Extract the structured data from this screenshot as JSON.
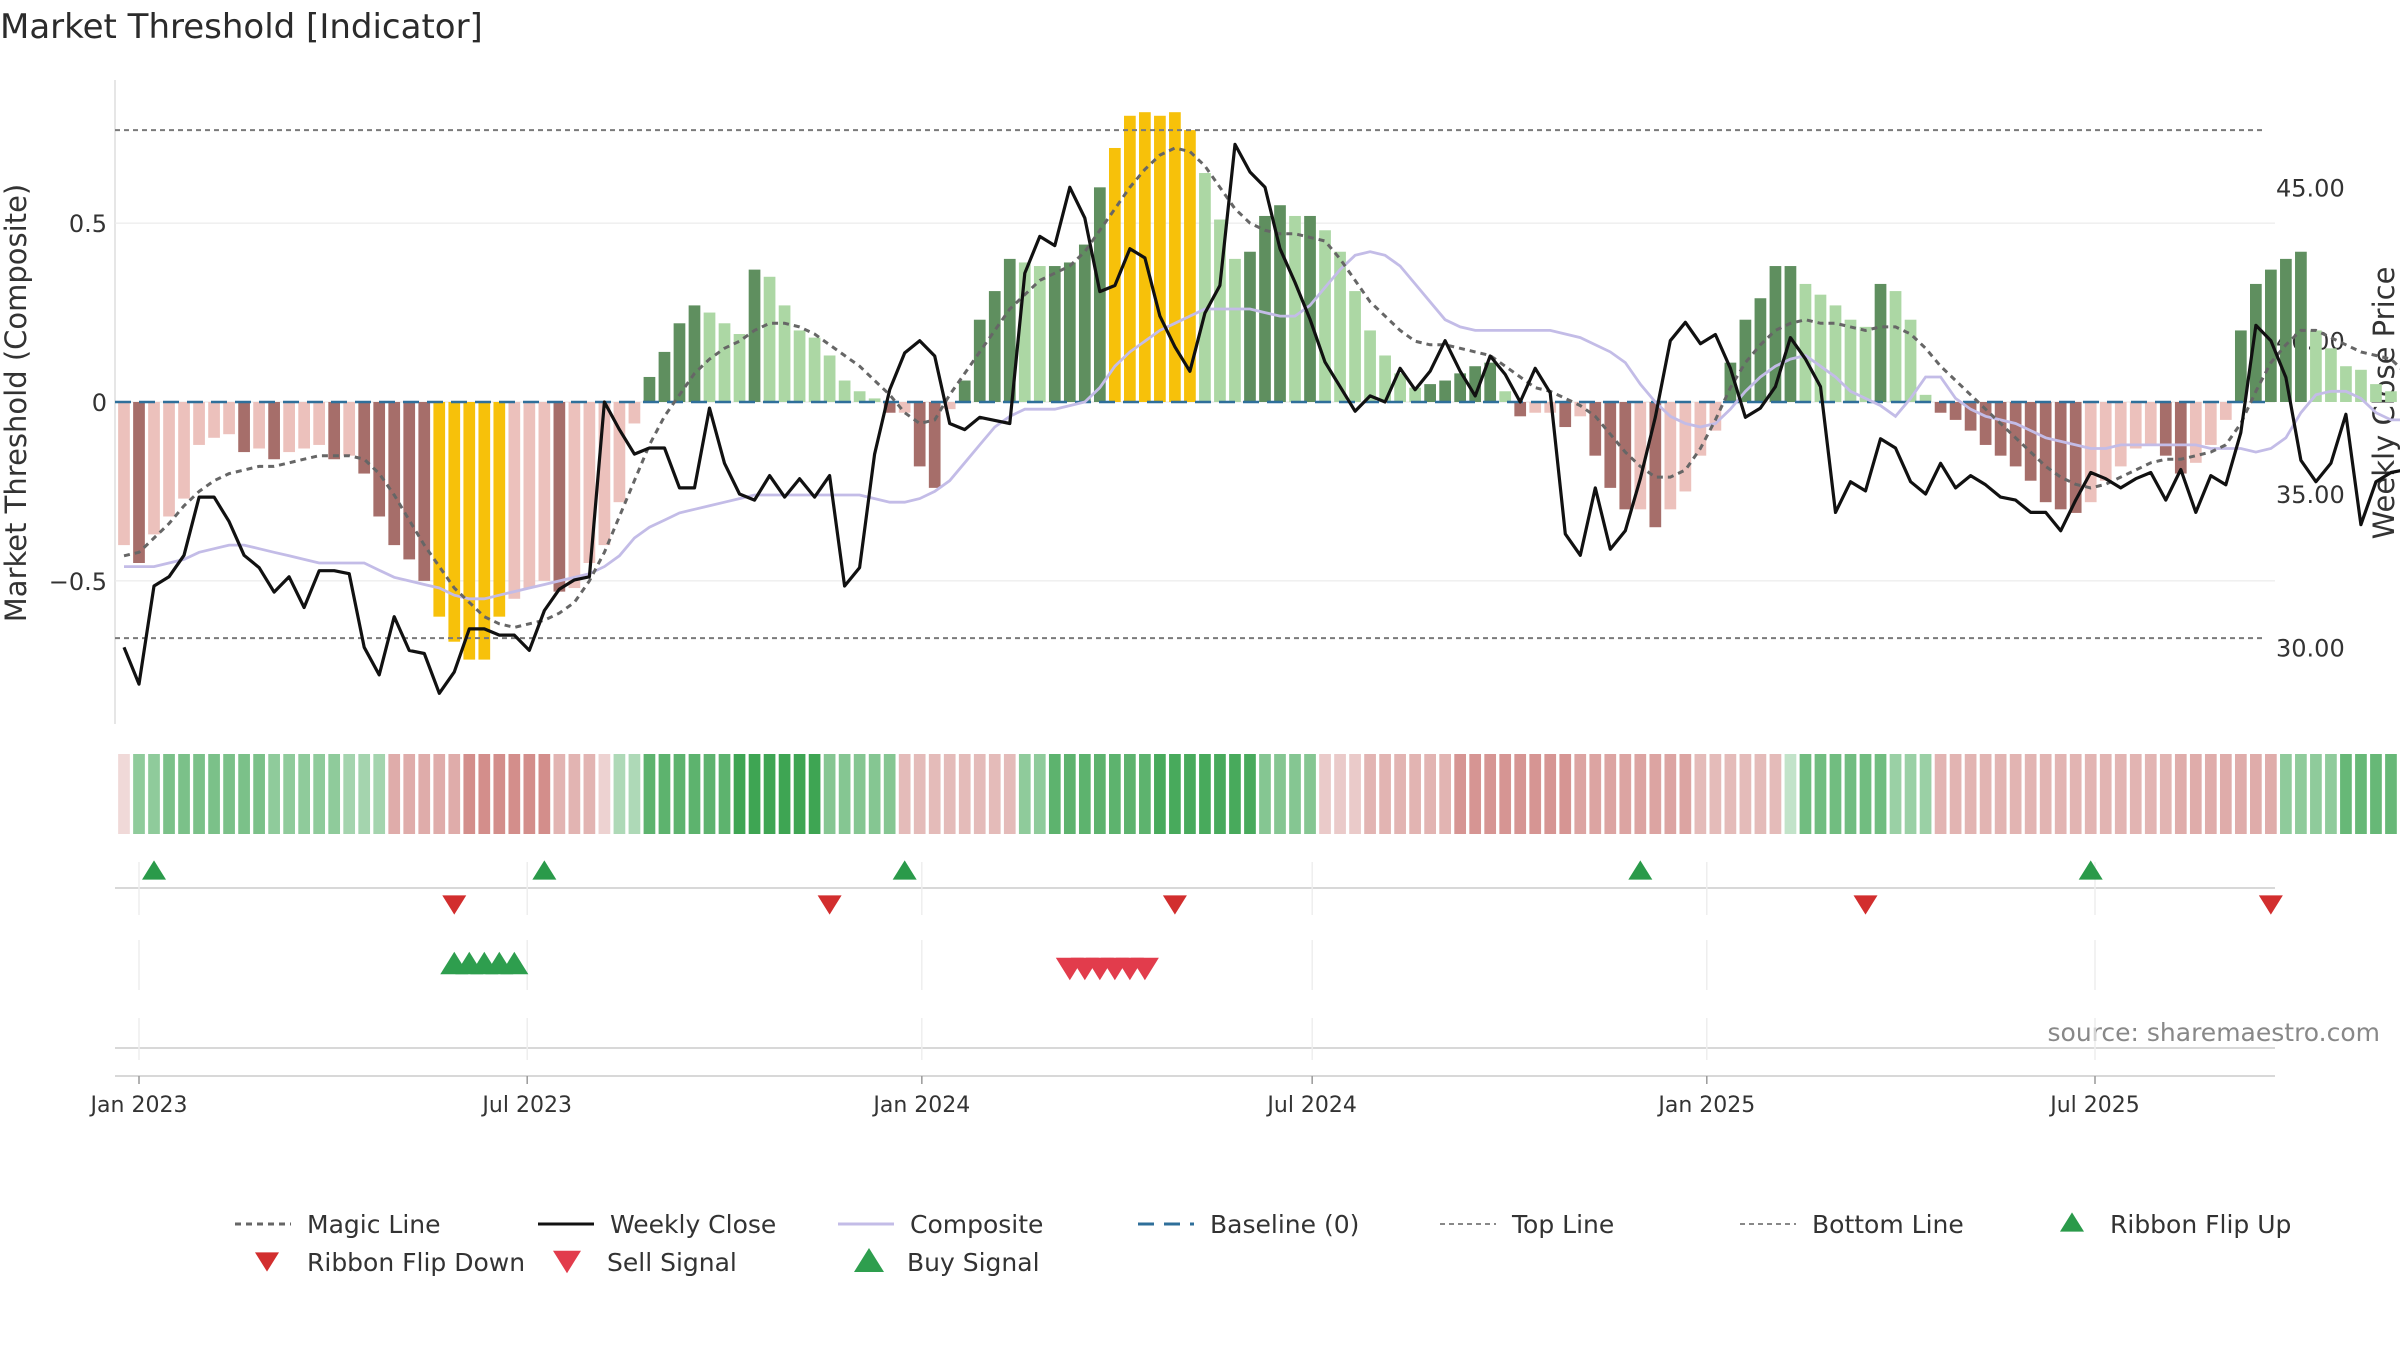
{
  "chart_data": {
    "type": "bar",
    "title": "Market Threshold [Indicator]",
    "ylabel_left": "Market Threshold (Composite)",
    "ylabel_right": "Weekly Close Price",
    "source": "source: sharemaestro.com",
    "ylim_left": [
      -0.9,
      0.9
    ],
    "ylim_right": [
      27.5,
      48.5
    ],
    "left_ticks": [
      {
        "v": 0.5,
        "label": "0.5"
      },
      {
        "v": 0,
        "label": "0"
      },
      {
        "v": -0.5,
        "label": "−0.5"
      }
    ],
    "right_ticks": [
      {
        "v": 45,
        "label": "45.00"
      },
      {
        "v": 40,
        "label": "40.00"
      },
      {
        "v": 35,
        "label": "35.00"
      },
      {
        "v": 30,
        "label": "30.00"
      }
    ],
    "top_line": 0.76,
    "bottom_line": -0.66,
    "baseline": 0,
    "x_ticks": [
      {
        "date": "2023-01-01",
        "label": "Jan 2023"
      },
      {
        "date": "2023-07-01",
        "label": "Jul 2023"
      },
      {
        "date": "2024-01-01",
        "label": "Jan 2024"
      },
      {
        "date": "2024-07-01",
        "label": "Jul 2024"
      },
      {
        "date": "2025-01-01",
        "label": "Jan 2025"
      },
      {
        "date": "2025-07-01",
        "label": "Jul 2025"
      }
    ],
    "first_week": "2022-12-25",
    "composite_bars": [
      -0.4,
      -0.45,
      -0.37,
      -0.32,
      -0.27,
      -0.12,
      -0.1,
      -0.09,
      -0.14,
      -0.13,
      -0.16,
      -0.14,
      -0.13,
      -0.12,
      -0.16,
      -0.15,
      -0.2,
      -0.32,
      -0.4,
      -0.44,
      -0.5,
      -0.6,
      -0.67,
      -0.72,
      -0.72,
      -0.6,
      -0.55,
      -0.52,
      -0.5,
      -0.53,
      -0.52,
      -0.45,
      -0.4,
      -0.28,
      -0.06,
      0.07,
      0.14,
      0.22,
      0.27,
      0.25,
      0.22,
      0.19,
      0.37,
      0.35,
      0.27,
      0.2,
      0.18,
      0.13,
      0.06,
      0.03,
      0.01,
      -0.03,
      -0.03,
      -0.18,
      -0.24,
      -0.02,
      0.06,
      0.23,
      0.31,
      0.4,
      0.39,
      0.38,
      0.38,
      0.39,
      0.44,
      0.6,
      0.71,
      0.8,
      0.81,
      0.8,
      0.81,
      0.76,
      0.64,
      0.51,
      0.4,
      0.42,
      0.52,
      0.55,
      0.52,
      0.52,
      0.48,
      0.42,
      0.31,
      0.2,
      0.13,
      0.08,
      0.04,
      0.05,
      0.06,
      0.08,
      0.1,
      0.11,
      0.03,
      -0.04,
      -0.03,
      -0.03,
      -0.07,
      -0.04,
      -0.15,
      -0.24,
      -0.3,
      -0.3,
      -0.35,
      -0.3,
      -0.25,
      -0.15,
      -0.08,
      0.11,
      0.23,
      0.29,
      0.38,
      0.38,
      0.33,
      0.3,
      0.27,
      0.23,
      0.21,
      0.33,
      0.31,
      0.23,
      0.02,
      -0.03,
      -0.05,
      -0.08,
      -0.12,
      -0.15,
      -0.18,
      -0.22,
      -0.28,
      -0.3,
      -0.31,
      -0.28,
      -0.22,
      -0.18,
      -0.13,
      -0.12,
      -0.15,
      -0.2,
      -0.17,
      -0.12,
      -0.05,
      0.2,
      0.33,
      0.37,
      0.4,
      0.42,
      0.2,
      0.15,
      0.1,
      0.09,
      0.05,
      0.03,
      0.1
    ],
    "weekly_close": [
      30.0,
      28.8,
      32.0,
      32.3,
      33.0,
      34.9,
      34.9,
      34.1,
      33.0,
      32.6,
      31.8,
      32.3,
      31.3,
      32.5,
      32.5,
      32.4,
      30.0,
      29.1,
      31.0,
      29.9,
      29.8,
      28.5,
      29.2,
      30.6,
      30.6,
      30.4,
      30.4,
      29.9,
      31.2,
      31.9,
      32.2,
      32.3,
      38.0,
      37.1,
      36.3,
      36.5,
      36.5,
      35.2,
      35.2,
      37.8,
      36.0,
      35.0,
      34.8,
      35.6,
      34.9,
      35.5,
      34.9,
      35.6,
      32.0,
      32.6,
      36.3,
      38.4,
      39.6,
      40.0,
      39.5,
      37.3,
      37.1,
      37.5,
      37.4,
      37.3,
      42.2,
      43.4,
      43.1,
      45.0,
      44.0,
      41.6,
      41.8,
      43.0,
      42.7,
      40.8,
      39.8,
      39.0,
      40.9,
      41.8,
      46.4,
      45.5,
      45.0,
      43.0,
      41.9,
      40.7,
      39.3,
      38.5,
      37.7,
      38.2,
      38.0,
      39.1,
      38.4,
      39.0,
      40.0,
      39.0,
      38.2,
      39.5,
      38.9,
      38.0,
      39.1,
      38.3,
      33.7,
      33.0,
      35.2,
      33.2,
      33.8,
      35.5,
      37.5,
      40.0,
      40.6,
      39.9,
      40.2,
      39.1,
      37.5,
      37.8,
      38.5,
      40.1,
      39.4,
      38.5,
      34.4,
      35.4,
      35.1,
      36.8,
      36.5,
      35.4,
      35.0,
      36.0,
      35.2,
      35.6,
      35.3,
      34.9,
      34.8,
      34.4,
      34.4,
      33.8,
      34.8,
      35.7,
      35.5,
      35.2,
      35.5,
      35.7,
      34.8,
      35.8,
      34.4,
      35.6,
      35.3,
      37.0,
      40.5,
      40.0,
      38.8,
      36.1,
      35.4,
      36.0,
      37.6,
      34.0,
      35.4,
      35.7,
      35.8,
      36.5,
      37.2,
      35.3,
      34.8
    ],
    "composite_line": [
      -0.46,
      -0.46,
      -0.46,
      -0.45,
      -0.44,
      -0.42,
      -0.41,
      -0.4,
      -0.4,
      -0.41,
      -0.42,
      -0.43,
      -0.44,
      -0.45,
      -0.45,
      -0.45,
      -0.45,
      -0.47,
      -0.49,
      -0.5,
      -0.51,
      -0.52,
      -0.54,
      -0.55,
      -0.55,
      -0.54,
      -0.53,
      -0.52,
      -0.51,
      -0.5,
      -0.49,
      -0.48,
      -0.46,
      -0.43,
      -0.38,
      -0.35,
      -0.33,
      -0.31,
      -0.3,
      -0.29,
      -0.28,
      -0.27,
      -0.26,
      -0.26,
      -0.26,
      -0.26,
      -0.26,
      -0.26,
      -0.26,
      -0.26,
      -0.27,
      -0.28,
      -0.28,
      -0.27,
      -0.25,
      -0.22,
      -0.17,
      -0.12,
      -0.07,
      -0.04,
      -0.02,
      -0.02,
      -0.02,
      -0.01,
      0.0,
      0.04,
      0.1,
      0.14,
      0.17,
      0.2,
      0.22,
      0.24,
      0.26,
      0.26,
      0.26,
      0.26,
      0.25,
      0.24,
      0.24,
      0.27,
      0.32,
      0.37,
      0.41,
      0.42,
      0.41,
      0.38,
      0.33,
      0.28,
      0.23,
      0.21,
      0.2,
      0.2,
      0.2,
      0.2,
      0.2,
      0.2,
      0.19,
      0.18,
      0.16,
      0.14,
      0.11,
      0.05,
      0.0,
      -0.04,
      -0.06,
      -0.07,
      -0.06,
      -0.02,
      0.03,
      0.07,
      0.1,
      0.12,
      0.13,
      0.1,
      0.07,
      0.03,
      0.01,
      -0.01,
      -0.04,
      0.01,
      0.07,
      0.07,
      0.01,
      -0.02,
      -0.04,
      -0.05,
      -0.06,
      -0.08,
      -0.1,
      -0.11,
      -0.12,
      -0.13,
      -0.13,
      -0.12,
      -0.12,
      -0.12,
      -0.12,
      -0.12,
      -0.12,
      -0.13,
      -0.13,
      -0.13,
      -0.14,
      -0.13,
      -0.1,
      -0.03,
      0.02,
      0.03,
      0.03,
      0.01,
      -0.03,
      -0.05,
      -0.05,
      -0.05,
      -0.06,
      -0.07
    ],
    "magic_line": [
      -0.43,
      -0.42,
      -0.38,
      -0.34,
      -0.29,
      -0.25,
      -0.22,
      -0.2,
      -0.19,
      -0.18,
      -0.18,
      -0.17,
      -0.16,
      -0.15,
      -0.15,
      -0.15,
      -0.16,
      -0.2,
      -0.26,
      -0.33,
      -0.4,
      -0.46,
      -0.52,
      -0.56,
      -0.6,
      -0.62,
      -0.63,
      -0.62,
      -0.61,
      -0.59,
      -0.56,
      -0.5,
      -0.42,
      -0.32,
      -0.22,
      -0.12,
      -0.04,
      0.02,
      0.08,
      0.12,
      0.15,
      0.17,
      0.2,
      0.22,
      0.22,
      0.21,
      0.19,
      0.16,
      0.13,
      0.1,
      0.06,
      0.02,
      -0.03,
      -0.06,
      -0.05,
      0.02,
      0.08,
      0.14,
      0.2,
      0.26,
      0.3,
      0.34,
      0.36,
      0.38,
      0.42,
      0.48,
      0.54,
      0.6,
      0.65,
      0.69,
      0.71,
      0.7,
      0.66,
      0.6,
      0.54,
      0.5,
      0.48,
      0.47,
      0.47,
      0.46,
      0.45,
      0.4,
      0.34,
      0.28,
      0.24,
      0.2,
      0.17,
      0.16,
      0.16,
      0.15,
      0.14,
      0.13,
      0.1,
      0.07,
      0.04,
      0.03,
      0.01,
      -0.01,
      -0.04,
      -0.09,
      -0.14,
      -0.18,
      -0.21,
      -0.21,
      -0.19,
      -0.13,
      -0.05,
      0.04,
      0.11,
      0.16,
      0.2,
      0.22,
      0.23,
      0.22,
      0.22,
      0.21,
      0.2,
      0.21,
      0.21,
      0.19,
      0.15,
      0.1,
      0.06,
      0.02,
      -0.02,
      -0.06,
      -0.1,
      -0.14,
      -0.18,
      -0.21,
      -0.23,
      -0.24,
      -0.23,
      -0.21,
      -0.19,
      -0.17,
      -0.16,
      -0.16,
      -0.15,
      -0.14,
      -0.12,
      -0.06,
      0.03,
      0.11,
      0.16,
      0.2,
      0.2,
      0.18,
      0.16,
      0.14,
      0.13,
      0.12,
      0.08
    ],
    "ribbon_flip_up": [
      "2023-01-08",
      "2023-07-09",
      "2023-12-24",
      "2024-12-01",
      "2025-06-29"
    ],
    "ribbon_flip_down": [
      "2023-05-28",
      "2023-11-19",
      "2024-04-28",
      "2025-03-16",
      "2025-09-21"
    ],
    "buy_signals": [
      "2023-05-28",
      "2023-06-04",
      "2023-06-11",
      "2023-06-18",
      "2023-06-25"
    ],
    "sell_signals": [
      "2024-03-10",
      "2024-03-17",
      "2024-03-24",
      "2024-03-31",
      "2024-04-07",
      "2024-04-14"
    ],
    "colors": {
      "dark_green": "#5f8f5f",
      "light_green": "#acd7a4",
      "dark_red": "#a66e6a",
      "light_red": "#ecc1bc",
      "yellow": "#f7c10a",
      "close": "#111111",
      "composite": "#c3bce7",
      "magic": "#666666",
      "baseline": "#2f6f9a",
      "flip_up": "#2a9a4a",
      "flip_down": "#d22e2e",
      "sell": "#e23c4c",
      "buy": "#2e9e4e"
    },
    "legend": [
      {
        "key": "magic",
        "label": "Magic Line"
      },
      {
        "key": "close",
        "label": "Weekly Close"
      },
      {
        "key": "composite",
        "label": "Composite"
      },
      {
        "key": "baseline",
        "label": "Baseline (0)"
      },
      {
        "key": "top",
        "label": "Top Line"
      },
      {
        "key": "bottom",
        "label": "Bottom Line"
      },
      {
        "key": "flip_up",
        "label": "Ribbon Flip Up"
      },
      {
        "key": "flip_down",
        "label": "Ribbon Flip Down"
      },
      {
        "key": "sell",
        "label": "Sell Signal"
      },
      {
        "key": "buy",
        "label": "Buy Signal"
      }
    ]
  }
}
